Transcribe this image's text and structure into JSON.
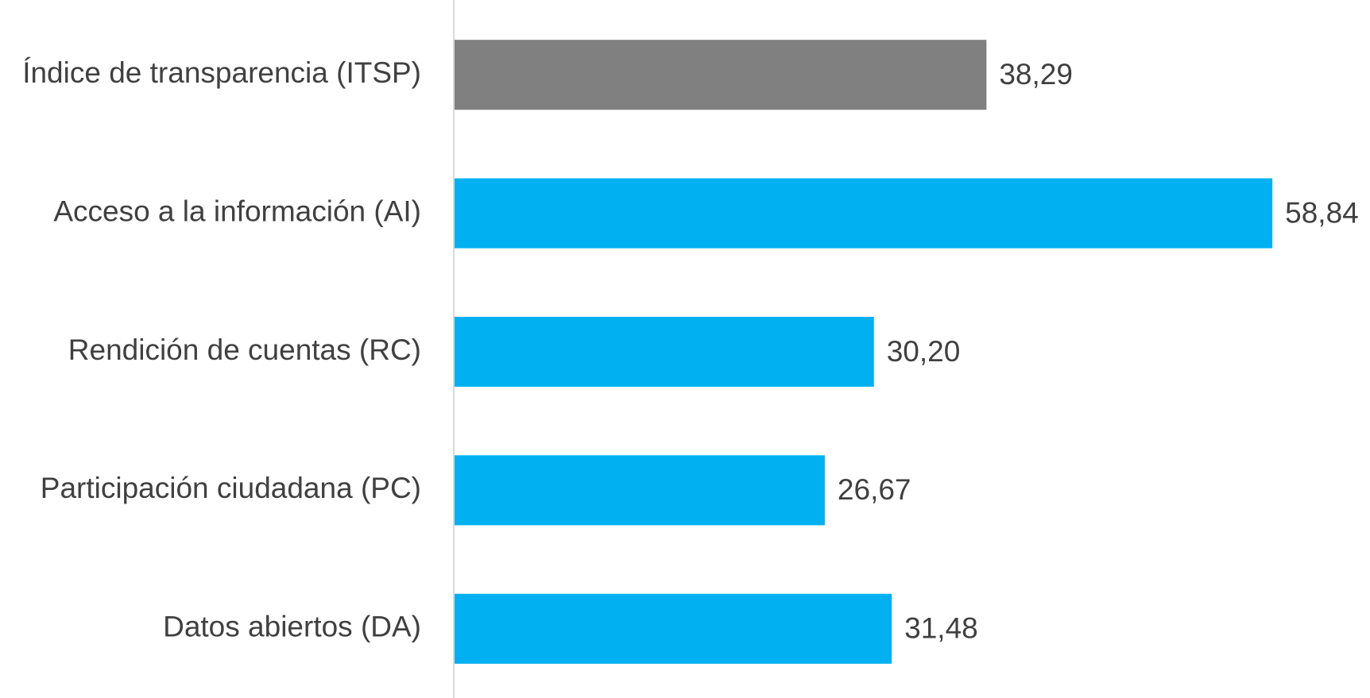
{
  "chart_data": {
    "type": "bar",
    "orientation": "horizontal",
    "categories": [
      "Índice de transparencia (ITSP)",
      "Acceso a la información (AI)",
      "Rendición de cuentas (RC)",
      "Participación ciudadana (PC)",
      "Datos abiertos (DA)"
    ],
    "values": [
      38.29,
      58.84,
      30.2,
      26.67,
      31.48
    ],
    "value_labels": [
      "38,29",
      "58,84",
      "30,20",
      "26,67",
      "31,48"
    ],
    "colors": [
      "#808080",
      "#00b0f0",
      "#00b0f0",
      "#00b0f0",
      "#00b0f0"
    ],
    "xlim": [
      0,
      65
    ],
    "grid": false
  }
}
